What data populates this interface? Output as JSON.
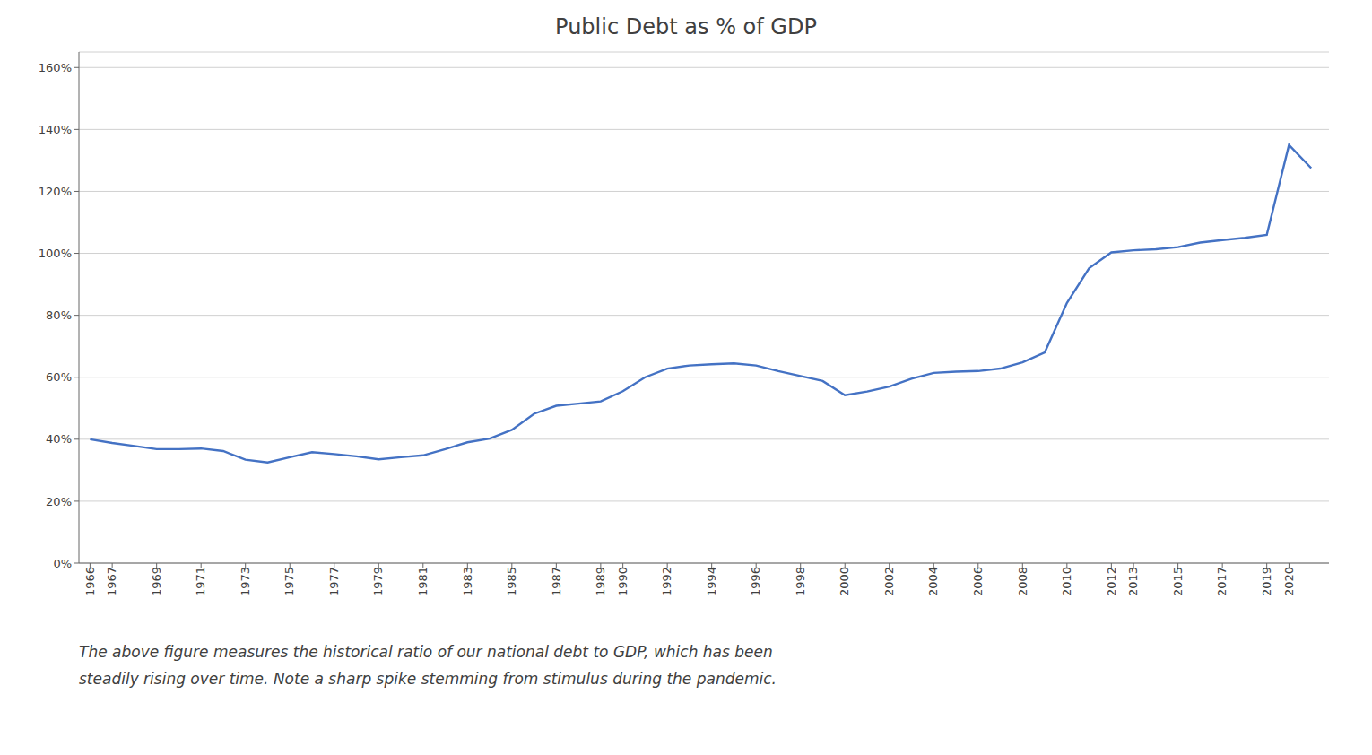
{
  "chart_data": {
    "type": "line",
    "title": "Public Debt as % of GDP",
    "annotations": [
      "The above figure measures the historical ratio of our national debt to GDP, which has been",
      "steadily rising over time. Note a sharp spike stemming from stimulus during the pandemic."
    ],
    "x": [
      1966,
      1967,
      1968,
      1969,
      1970,
      1971,
      1972,
      1973,
      1974,
      1975,
      1976,
      1977,
      1978,
      1979,
      1980,
      1981,
      1982,
      1983,
      1984,
      1985,
      1986,
      1987,
      1988,
      1989,
      1990,
      1991,
      1992,
      1993,
      1994,
      1995,
      1996,
      1997,
      1998,
      1999,
      2000,
      2001,
      2002,
      2003,
      2004,
      2005,
      2006,
      2007,
      2008,
      2009,
      2010,
      2011,
      2012,
      2013,
      2014,
      2015,
      2016,
      2017,
      2018,
      2019,
      2020,
      2021
    ],
    "values": [
      0.4,
      0.388,
      0.378,
      0.368,
      0.368,
      0.37,
      0.362,
      0.334,
      0.325,
      0.342,
      0.358,
      0.352,
      0.345,
      0.335,
      0.342,
      0.348,
      0.368,
      0.39,
      0.402,
      0.43,
      0.482,
      0.508,
      0.515,
      0.522,
      0.555,
      0.6,
      0.628,
      0.638,
      0.642,
      0.645,
      0.638,
      0.62,
      0.604,
      0.588,
      0.542,
      0.554,
      0.57,
      0.595,
      0.614,
      0.618,
      0.62,
      0.628,
      0.648,
      0.68,
      0.84,
      0.952,
      1.003,
      1.01,
      1.013,
      1.02,
      1.035,
      1.043,
      1.05,
      1.06,
      1.35,
      1.275
    ],
    "color": "#4472C4",
    "ylim": [
      0,
      1.65
    ],
    "yticks": [
      {
        "value": 0,
        "label": "0%"
      },
      {
        "value": 0.2,
        "label": "20%"
      },
      {
        "value": 0.4,
        "label": "40%"
      },
      {
        "value": 0.6,
        "label": "60%"
      },
      {
        "value": 0.8,
        "label": "80%"
      },
      {
        "value": 1.0,
        "label": "100%"
      },
      {
        "value": 1.2,
        "label": "120%"
      },
      {
        "value": 1.4,
        "label": "140%"
      },
      {
        "value": 1.6,
        "label": "160%"
      }
    ],
    "xlim": [
      1965.5,
      2021.8
    ],
    "xticks": [
      1966,
      1967,
      1969,
      1971,
      1973,
      1975,
      1977,
      1979,
      1981,
      1983,
      1985,
      1987,
      1989,
      1990,
      1992,
      1994,
      1996,
      1998,
      2000,
      2002,
      2004,
      2006,
      2008,
      2010,
      2012,
      2013,
      2015,
      2017,
      2019,
      2020
    ],
    "grid": true
  }
}
